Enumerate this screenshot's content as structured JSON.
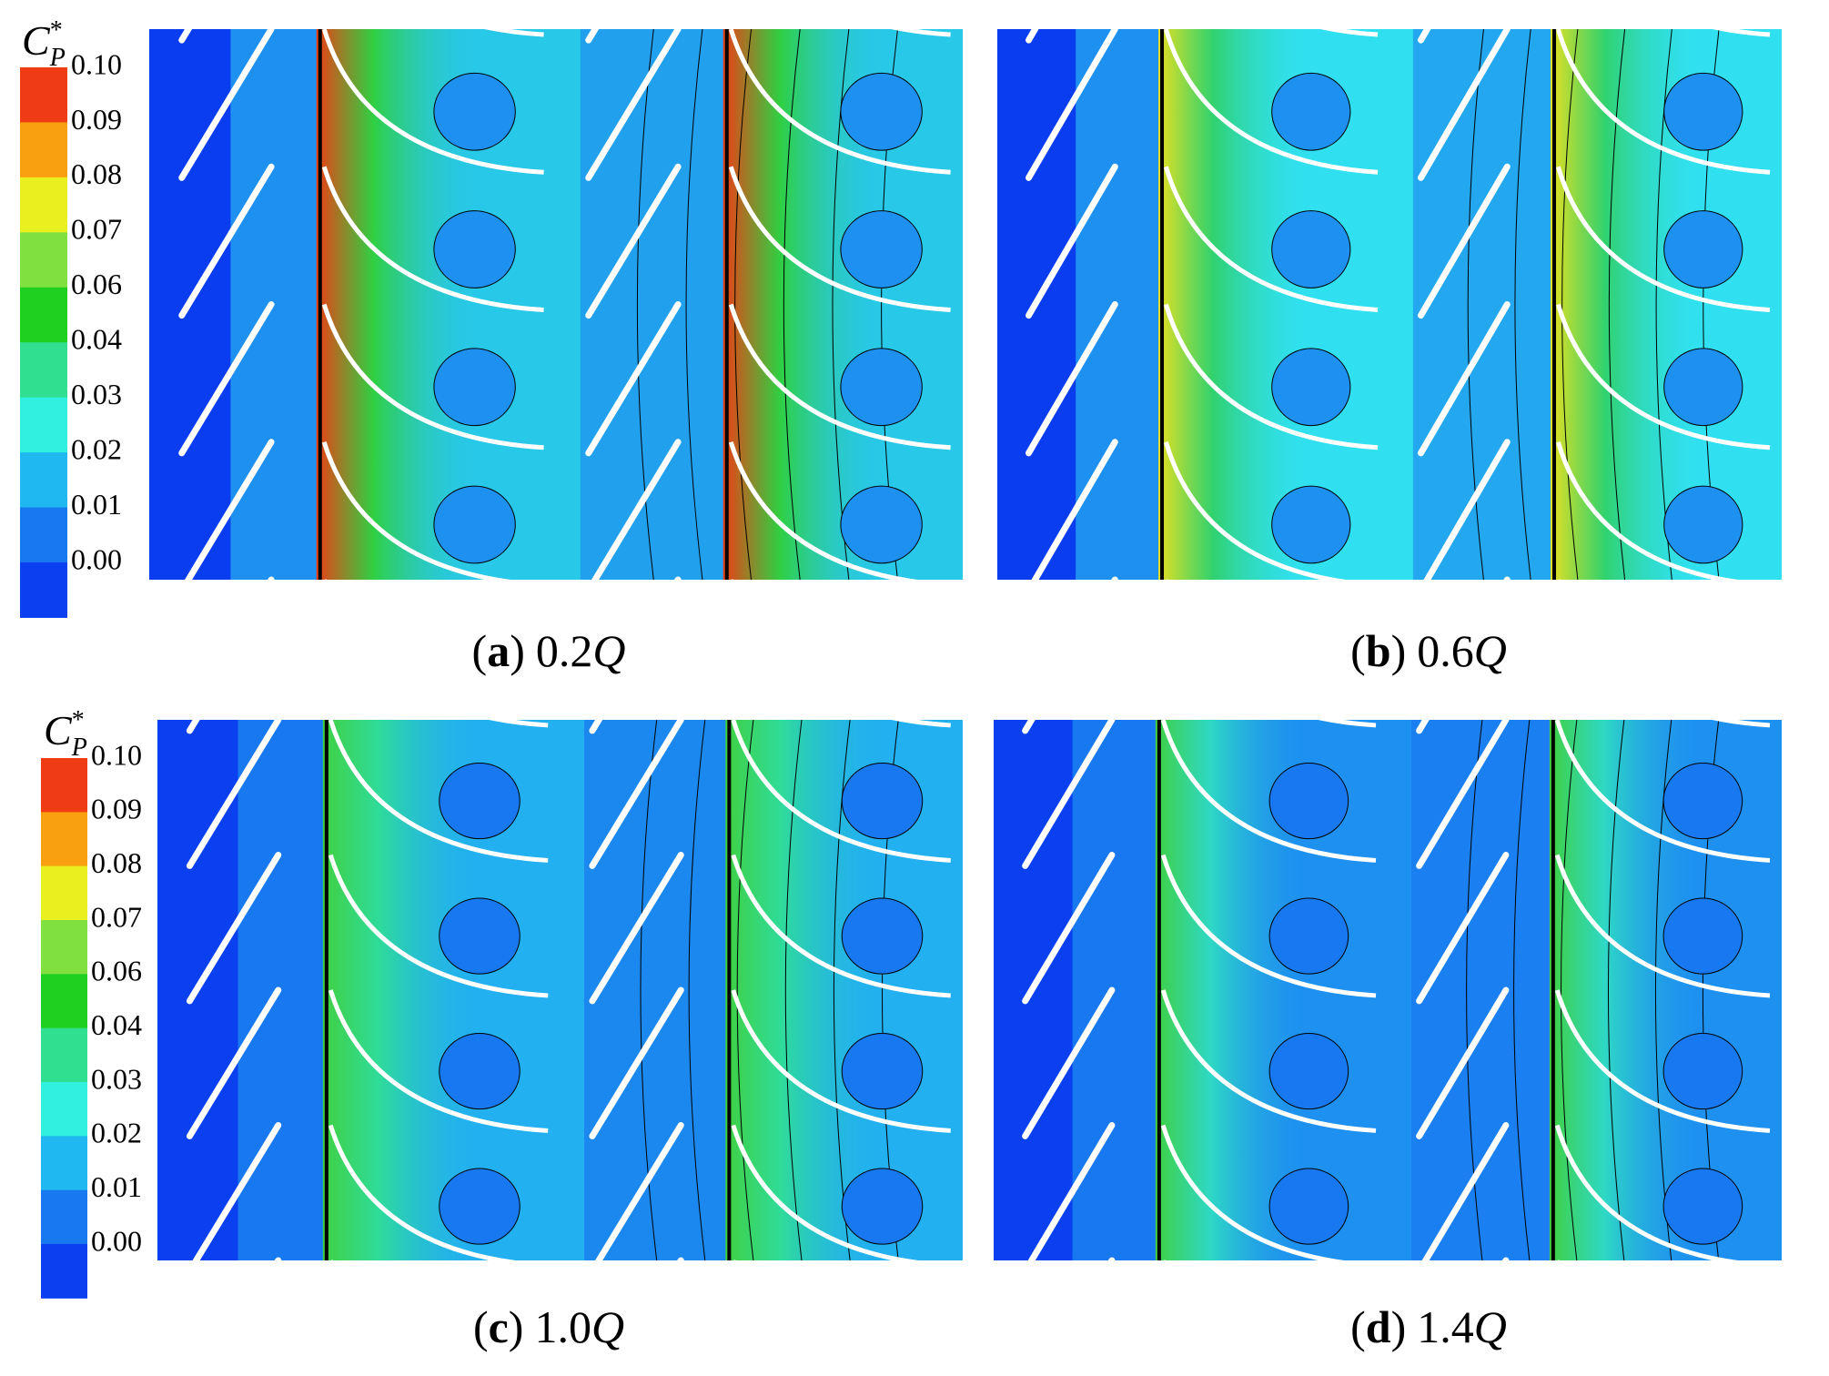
{
  "panels": [
    {
      "caption": {
        "open": "(",
        "letter": "a",
        "close": ")",
        "value": "0.2",
        "unit": "Q"
      },
      "colorbar": {
        "symbol": "C",
        "subscript": "P",
        "superscript": "*",
        "ticks": [
          "0.10",
          "0.09",
          "0.08",
          "0.07",
          "0.06",
          "0.04",
          "0.03",
          "0.02",
          "0.01",
          "0.00"
        ]
      }
    },
    {
      "caption": {
        "open": "(",
        "letter": "b",
        "close": ")",
        "value": "0.6",
        "unit": "Q"
      }
    },
    {
      "caption": {
        "open": "(",
        "letter": "c",
        "close": ")",
        "value": "1.0",
        "unit": "Q"
      },
      "colorbar": {
        "symbol": "C",
        "subscript": "P",
        "superscript": "*",
        "ticks": [
          "0.10",
          "0.09",
          "0.08",
          "0.07",
          "0.06",
          "0.04",
          "0.03",
          "0.02",
          "0.01",
          "0.00"
        ]
      }
    },
    {
      "caption": {
        "open": "(",
        "letter": "d",
        "close": ")",
        "value": "1.4",
        "unit": "Q"
      }
    }
  ]
}
